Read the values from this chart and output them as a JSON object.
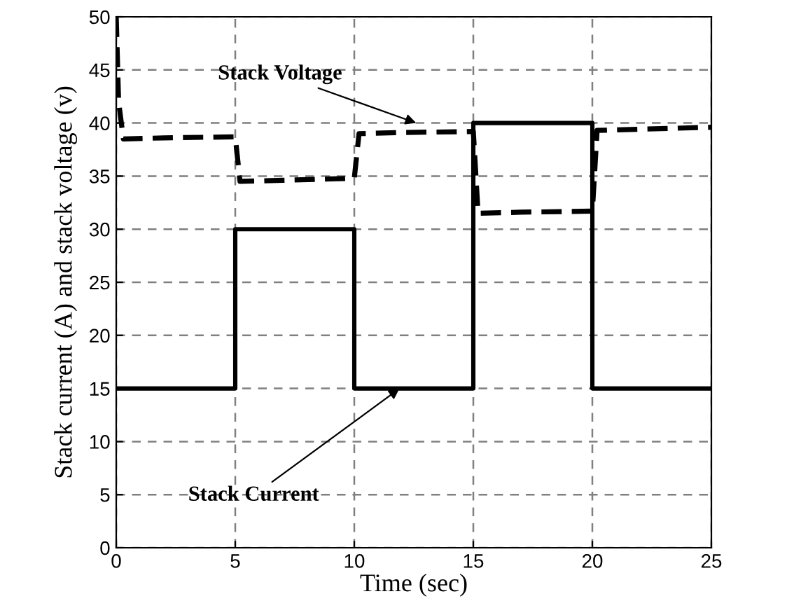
{
  "chart_data": {
    "type": "line",
    "xlabel": "Time (sec)",
    "ylabel": "Stack current (A) and stack voltage (v)",
    "xlim": [
      0,
      25
    ],
    "ylim": [
      0,
      50
    ],
    "xticks": [
      0,
      5,
      10,
      15,
      20,
      25
    ],
    "yticks": [
      0,
      5,
      10,
      15,
      20,
      25,
      30,
      35,
      40,
      45,
      50
    ],
    "grid": true,
    "legend": false,
    "series": [
      {
        "color": "#000000",
        "line_style": "solid",
        "x": [
          0,
          5,
          5,
          10,
          10,
          15,
          15,
          20,
          20,
          25
        ],
        "values": [
          15,
          15,
          30,
          30,
          15,
          15,
          40,
          40,
          15,
          15
        ]
      },
      {
        "color": "#000000",
        "line_style": "dashed",
        "x": [
          0,
          0.1,
          0.3,
          2,
          5,
          5.2,
          7,
          10,
          10.2,
          12,
          15,
          15.2,
          17,
          20,
          20.2,
          25
        ],
        "values": [
          50,
          42,
          38.5,
          38.6,
          38.7,
          34.5,
          34.6,
          34.8,
          39,
          39.1,
          39.2,
          31.5,
          31.6,
          31.7,
          39.3,
          39.6
        ]
      }
    ],
    "annotations": [
      {
        "text": "Stack Voltage",
        "x": 12.6,
        "y": 40
      },
      {
        "text": "Stack Current",
        "x": 11.9,
        "y": 15
      }
    ]
  }
}
